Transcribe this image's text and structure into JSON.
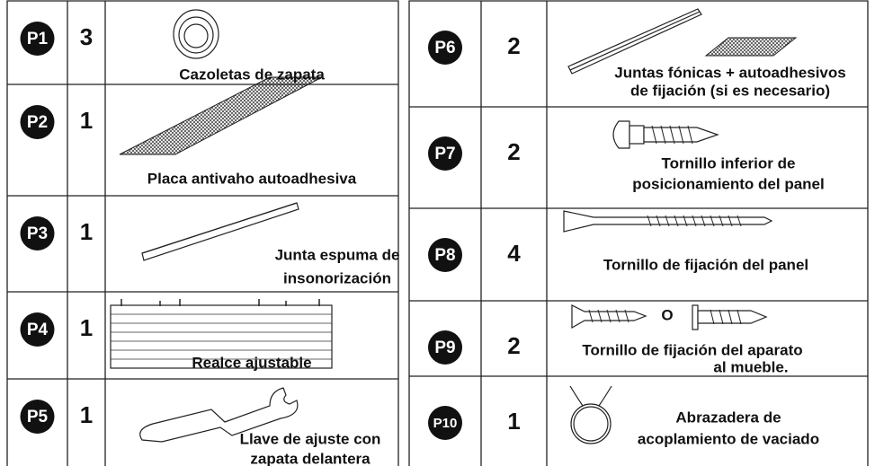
{
  "left": {
    "rows": [
      {
        "part": "P1",
        "qty": "3",
        "label": [
          "Cazoletas de zapata"
        ]
      },
      {
        "part": "P2",
        "qty": "1",
        "label": [
          "Placa antivaho autoadhesiva"
        ]
      },
      {
        "part": "P3",
        "qty": "1",
        "label": [
          "Junta espuma de",
          "insonorización"
        ]
      },
      {
        "part": "P4",
        "qty": "1",
        "label": [
          "Realce ajustable"
        ]
      },
      {
        "part": "P5",
        "qty": "1",
        "label": [
          "Llave de ajuste con",
          "zapata delantera"
        ]
      }
    ]
  },
  "right": {
    "rows": [
      {
        "part": "P6",
        "qty": "2",
        "label": [
          "Juntas fónicas + autoadhesivos",
          "de fijación (si es necesario)"
        ]
      },
      {
        "part": "P7",
        "qty": "2",
        "label": [
          "Tornillo inferior de",
          "posicionamiento del panel"
        ]
      },
      {
        "part": "P8",
        "qty": "4",
        "label": [
          "Tornillo de fijación del panel"
        ]
      },
      {
        "part": "P9",
        "qty": "2",
        "label": [
          "Tornillo de fijación del aparato",
          "al mueble."
        ],
        "separator": "O"
      },
      {
        "part": "P10",
        "qty": "1",
        "label": [
          "Abrazadera de",
          "acoplamiento de vaciado"
        ]
      }
    ]
  }
}
